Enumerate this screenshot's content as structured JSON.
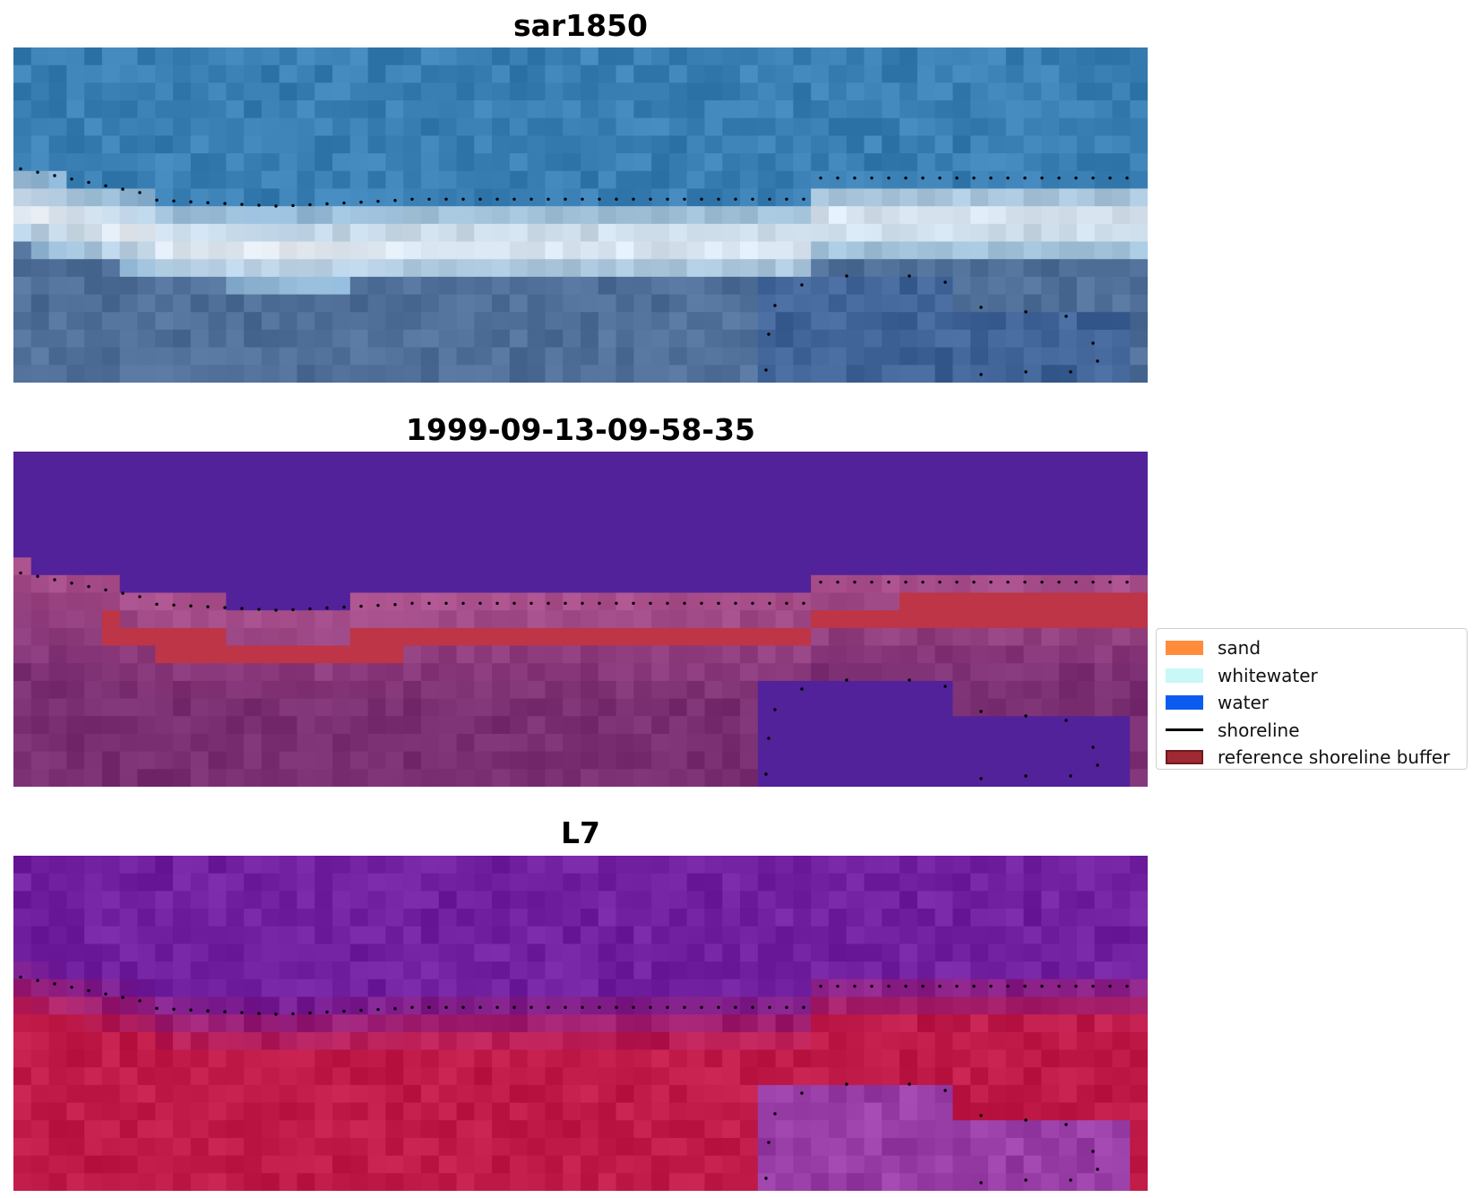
{
  "panels": [
    {
      "title": "sar1850",
      "kind": "rgb"
    },
    {
      "title": "1999-09-13-09-58-35",
      "kind": "classified"
    },
    {
      "title": "L7",
      "kind": "index"
    }
  ],
  "legend": {
    "items": [
      {
        "label": "sand",
        "color": "#ff8c3b",
        "kind": "patch"
      },
      {
        "label": "whitewater",
        "color": "#c8f8f8",
        "kind": "patch"
      },
      {
        "label": "water",
        "color": "#0a5cf0",
        "kind": "patch"
      },
      {
        "label": "shoreline",
        "color": "#000000",
        "kind": "line"
      },
      {
        "label": "reference shoreline buffer",
        "color": "#a02a33",
        "kind": "buffer"
      }
    ]
  },
  "colors": {
    "sea_blue": "#3a7fb4",
    "surf_white": "#e8eef4",
    "land_blue": "#4f6e98",
    "class_water": "#52229a",
    "class_buffer": "#bd3546",
    "class_land": "#7a2e72",
    "index_water": "#7120a0",
    "index_land": "#c01a48"
  }
}
